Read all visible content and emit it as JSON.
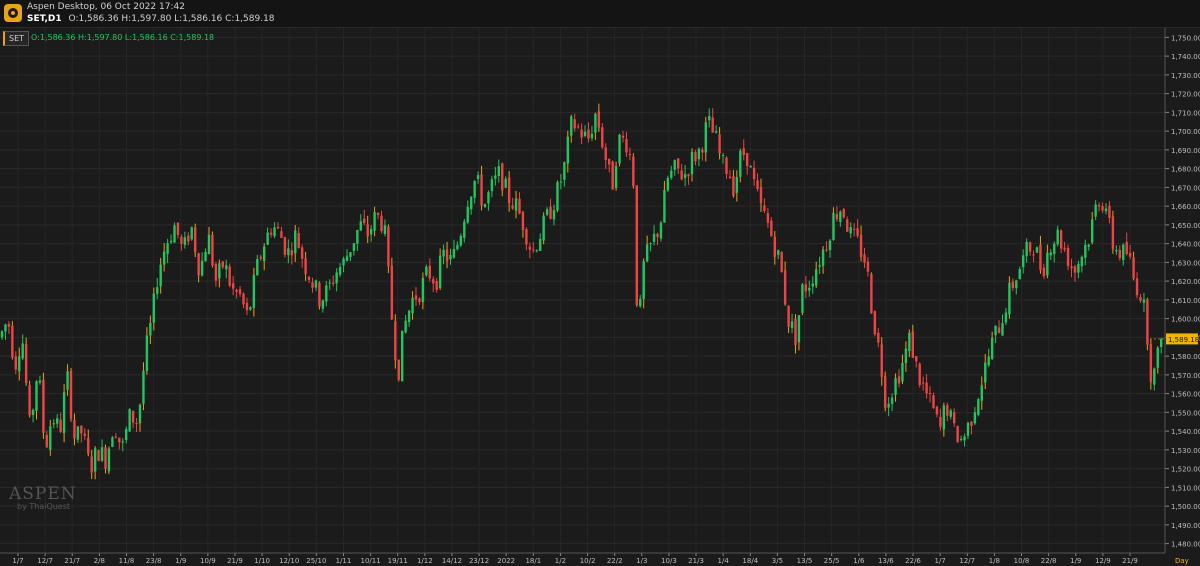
{
  "window": {
    "title": "Aspen Desktop, 06 Oct 2022 17:42",
    "symbol": "SET,D1",
    "ohlc": "O:1,586.36 H:1,597.80 L:1,586.16 C:1,589.18"
  },
  "legend": {
    "badge": "SET",
    "ohlc": "O:1,586.36  H:1,597.80  L:1,586.16  C:1,589.18"
  },
  "watermark": {
    "brand": "ASPEN",
    "byline": "by ThaiQuest"
  },
  "colors": {
    "up": "#22c55e",
    "down": "#ef4444",
    "volatile_wick": "#e8a317",
    "background": "#1b1b1b",
    "grid": "#2b2b2b",
    "price_tag": "#f0b400"
  },
  "chart_data": {
    "type": "candlestick",
    "symbol": "SET",
    "timeframe": "D1",
    "price_axis": {
      "min": 1475,
      "max": 1755,
      "ticks": [
        1480,
        1490,
        1500,
        1510,
        1520,
        1530,
        1540,
        1550,
        1560,
        1570,
        1580,
        1590,
        1600,
        1610,
        1620,
        1630,
        1640,
        1650,
        1660,
        1670,
        1680,
        1690,
        1700,
        1710,
        1720,
        1730,
        1740,
        1750
      ],
      "tick_labels": [
        "1,480.00",
        "1,490.00",
        "1,500.00",
        "1,510.00",
        "1,520.00",
        "1,530.00",
        "1,540.00",
        "1,550.00",
        "1,560.00",
        "1,570.00",
        "1,580.00",
        "1,590.00",
        "1,600.00",
        "1,610.00",
        "1,620.00",
        "1,630.00",
        "1,640.00",
        "1,650.00",
        "1,660.00",
        "1,670.00",
        "1,680.00",
        "1,690.00",
        "1,700.00",
        "1,710.00",
        "1,720.00",
        "1,730.00",
        "1,740.00",
        "1,750.00"
      ]
    },
    "last_price": 1589.18,
    "last_price_label": "1,589.18",
    "time_axis": {
      "labels": [
        "1/7",
        "12/7",
        "21/7",
        "2/8",
        "11/8",
        "23/8",
        "1/9",
        "10/9",
        "21/9",
        "1/10",
        "12/10",
        "25/10",
        "1/11",
        "10/11",
        "19/11",
        "1/12",
        "14/12",
        "23/12",
        "2022",
        "18/1",
        "1/2",
        "10/2",
        "22/2",
        "1/3",
        "10/3",
        "21/3",
        "1/4",
        "18/4",
        "3/5",
        "13/5",
        "25/5",
        "1/6",
        "13/6",
        "22/6",
        "1/7",
        "12/7",
        "1/8",
        "10/8",
        "22/8",
        "1/9",
        "12/9",
        "21/9"
      ],
      "unit_label": "Day"
    },
    "start": 1590,
    "path": [
      [
        0,
        1590
      ],
      [
        8,
        1600
      ],
      [
        15,
        1575
      ],
      [
        22,
        1592
      ],
      [
        30,
        1540
      ],
      [
        38,
        1575
      ],
      [
        45,
        1530
      ],
      [
        52,
        1548
      ],
      [
        60,
        1540
      ],
      [
        67,
        1570
      ],
      [
        75,
        1535
      ],
      [
        82,
        1540
      ],
      [
        90,
        1520
      ],
      [
        98,
        1530
      ],
      [
        106,
        1525
      ],
      [
        114,
        1545
      ],
      [
        122,
        1530
      ],
      [
        130,
        1548
      ],
      [
        138,
        1545
      ],
      [
        145,
        1580
      ],
      [
        152,
        1600
      ],
      [
        158,
        1625
      ],
      [
        166,
        1640
      ],
      [
        175,
        1650
      ],
      [
        183,
        1635
      ],
      [
        191,
        1650
      ],
      [
        200,
        1625
      ],
      [
        208,
        1645
      ],
      [
        216,
        1620
      ],
      [
        224,
        1630
      ],
      [
        232,
        1615
      ],
      [
        240,
        1612
      ],
      [
        248,
        1600
      ],
      [
        256,
        1625
      ],
      [
        264,
        1640
      ],
      [
        272,
        1650
      ],
      [
        280,
        1645
      ],
      [
        288,
        1635
      ],
      [
        296,
        1645
      ],
      [
        304,
        1630
      ],
      [
        312,
        1620
      ],
      [
        320,
        1610
      ],
      [
        328,
        1615
      ],
      [
        336,
        1625
      ],
      [
        344,
        1630
      ],
      [
        352,
        1640
      ],
      [
        360,
        1650
      ],
      [
        368,
        1645
      ],
      [
        376,
        1655
      ],
      [
        384,
        1650
      ],
      [
        392,
        1600
      ],
      [
        398,
        1570
      ],
      [
        404,
        1595
      ],
      [
        412,
        1610
      ],
      [
        420,
        1615
      ],
      [
        428,
        1625
      ],
      [
        436,
        1620
      ],
      [
        444,
        1635
      ],
      [
        452,
        1630
      ],
      [
        460,
        1645
      ],
      [
        468,
        1665
      ],
      [
        476,
        1675
      ],
      [
        484,
        1660
      ],
      [
        492,
        1670
      ],
      [
        500,
        1678
      ],
      [
        508,
        1665
      ],
      [
        516,
        1660
      ],
      [
        524,
        1650
      ],
      [
        532,
        1635
      ],
      [
        540,
        1645
      ],
      [
        548,
        1655
      ],
      [
        556,
        1665
      ],
      [
        564,
        1680
      ],
      [
        572,
        1705
      ],
      [
        580,
        1700
      ],
      [
        588,
        1695
      ],
      [
        596,
        1710
      ],
      [
        604,
        1690
      ],
      [
        612,
        1670
      ],
      [
        618,
        1695
      ],
      [
        626,
        1695
      ],
      [
        633,
        1680
      ],
      [
        638,
        1590
      ],
      [
        644,
        1630
      ],
      [
        652,
        1640
      ],
      [
        660,
        1650
      ],
      [
        668,
        1675
      ],
      [
        676,
        1680
      ],
      [
        684,
        1676
      ],
      [
        692,
        1685
      ],
      [
        700,
        1690
      ],
      [
        708,
        1705
      ],
      [
        716,
        1695
      ],
      [
        722,
        1682
      ],
      [
        728,
        1680
      ],
      [
        734,
        1670
      ],
      [
        740,
        1685
      ],
      [
        746,
        1690
      ],
      [
        752,
        1675
      ],
      [
        760,
        1660
      ],
      [
        768,
        1650
      ],
      [
        774,
        1640
      ],
      [
        780,
        1630
      ],
      [
        788,
        1600
      ],
      [
        796,
        1590
      ],
      [
        802,
        1615
      ],
      [
        810,
        1620
      ],
      [
        818,
        1630
      ],
      [
        826,
        1640
      ],
      [
        834,
        1655
      ],
      [
        842,
        1660
      ],
      [
        850,
        1645
      ],
      [
        858,
        1640
      ],
      [
        866,
        1630
      ],
      [
        872,
        1605
      ],
      [
        880,
        1580
      ],
      [
        886,
        1555
      ],
      [
        894,
        1565
      ],
      [
        902,
        1575
      ],
      [
        910,
        1590
      ],
      [
        918,
        1570
      ],
      [
        926,
        1560
      ],
      [
        934,
        1550
      ],
      [
        940,
        1540
      ],
      [
        946,
        1555
      ],
      [
        954,
        1540
      ],
      [
        962,
        1535
      ],
      [
        970,
        1545
      ],
      [
        978,
        1560
      ],
      [
        986,
        1575
      ],
      [
        994,
        1590
      ],
      [
        1002,
        1600
      ],
      [
        1010,
        1615
      ],
      [
        1018,
        1625
      ],
      [
        1026,
        1635
      ],
      [
        1034,
        1640
      ],
      [
        1042,
        1625
      ],
      [
        1050,
        1640
      ],
      [
        1058,
        1645
      ],
      [
        1066,
        1635
      ],
      [
        1074,
        1625
      ],
      [
        1082,
        1635
      ],
      [
        1090,
        1645
      ],
      [
        1098,
        1665
      ],
      [
        1106,
        1660
      ],
      [
        1112,
        1640
      ],
      [
        1120,
        1635
      ],
      [
        1128,
        1635
      ],
      [
        1134,
        1620
      ],
      [
        1140,
        1615
      ],
      [
        1146,
        1600
      ],
      [
        1152,
        1565
      ],
      [
        1158,
        1580
      ],
      [
        1162,
        1589
      ]
    ]
  }
}
